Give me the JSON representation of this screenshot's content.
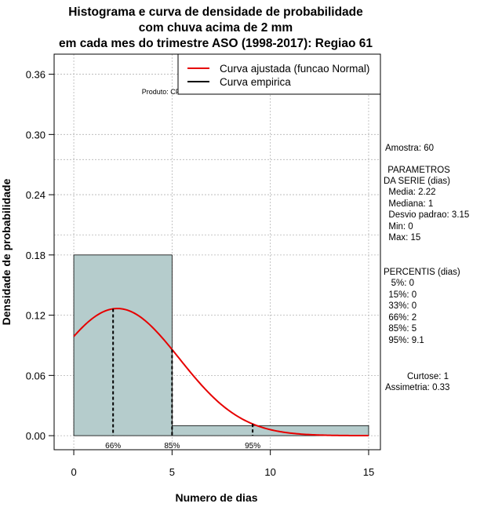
{
  "chart_data": {
    "type": "bar",
    "title_lines": [
      "Histograma e curva de densidade de probabilidade",
      "com chuva acima de 2 mm",
      "em cada mes do trimestre ASO (1998-2017): Regiao 61"
    ],
    "xlabel": "Numero de dias",
    "ylabel": "Densidade de probabilidade",
    "xlim": [
      -1,
      15.6
    ],
    "ylim": [
      -0.014,
      0.38
    ],
    "xticks": [
      0,
      5,
      10,
      15
    ],
    "xtick_labels": [
      "0",
      "5",
      "10",
      "15"
    ],
    "yticks": [
      0.0,
      0.06,
      0.12,
      0.18,
      0.24,
      0.3,
      0.36
    ],
    "ytick_labels": [
      "0.00",
      "0.06",
      "0.12",
      "0.18",
      "0.24",
      "0.30",
      "0.36"
    ],
    "bins": [
      {
        "x0": 0,
        "x1": 5,
        "density": 0.18
      },
      {
        "x0": 5,
        "x1": 15,
        "density": 0.01
      }
    ],
    "fitted_curve": {
      "type": "normal",
      "mean": 2.22,
      "sd": 3.15,
      "x_from": 0,
      "x_to": 15
    },
    "percentile_markers": [
      {
        "label": "66%",
        "x": 2
      },
      {
        "label": "85%",
        "x": 5
      },
      {
        "label": "95%",
        "x": 9.1
      }
    ],
    "legend": [
      {
        "label": "Curva ajustada (funcao Normal)",
        "color": "#e60000"
      },
      {
        "label": "Curva empirica",
        "color": "#000000"
      }
    ],
    "legend_position": "top-right",
    "grid": true,
    "credit": "Produto: CPTEC/INPE"
  },
  "sidebar": {
    "amostra": "Amostra: 60",
    "param_title_1": " PARAMETROS",
    "param_title_2": "DA SERIE (dias)",
    "media": "  Media: 2.22",
    "mediana": "  Mediana: 1",
    "desvio": "  Desvio padrao: 3.15",
    "min": "  Min: 0",
    "max": "  Max: 15",
    "perc_title": "PERCENTIS (dias)",
    "p5": "   5%: 0",
    "p15": "  15%: 0",
    "p33": "  33%: 0",
    "p66": "  66%: 2",
    "p85": "  85%: 5",
    "p95": "  95%: 9.1",
    "curtose": "Curtose: 1",
    "assimetria": "Assimetria: 0.33"
  },
  "colors": {
    "bar_fill": "#b5cccc",
    "curve": "#e60000",
    "grid": "#b4b4b4"
  }
}
